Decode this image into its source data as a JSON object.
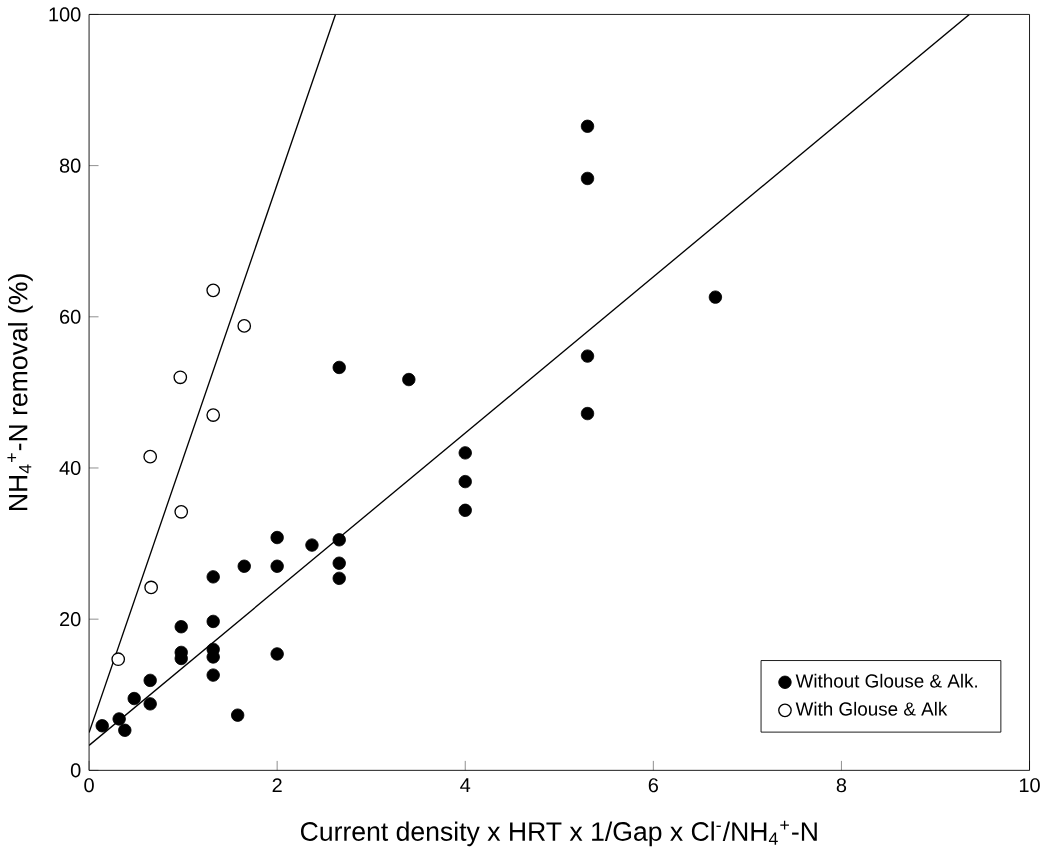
{
  "chart_data": {
    "type": "scatter",
    "xlabel": "Current density x HRT x 1/Gap x Cl$^{-}$/NH$_{4}$$^{+}$-N",
    "ylabel": "NH$_{4}$$^{+}$-N removal (%)",
    "xlim": [
      0,
      10
    ],
    "ylim": [
      0,
      100
    ],
    "xticks": [
      0,
      2,
      4,
      6,
      8,
      10
    ],
    "yticks": [
      0,
      20,
      40,
      60,
      80,
      100
    ],
    "grid": false,
    "legend": "bottom right",
    "series": [
      {
        "name": "Without Glouse & Alk.",
        "color": "#000000",
        "marker": "circle",
        "x": [
          5.3,
          5.3,
          6.66,
          5.3,
          5.3,
          2.66,
          3.4,
          4.0,
          4.0,
          4.0,
          2.0,
          2.37,
          2.66,
          2.66,
          2.66,
          1.65,
          2.0,
          1.32,
          0.98,
          1.32,
          0.98,
          0.98,
          1.32,
          1.32,
          1.32,
          2.0,
          1.58,
          0.65,
          0.65,
          0.48,
          0.32,
          0.14,
          0.38
        ],
        "values": [
          85.2,
          78.3,
          62.6,
          54.8,
          47.2,
          53.3,
          51.7,
          42,
          38.2,
          34.4,
          30.8,
          29.8,
          30.5,
          27.4,
          25.4,
          27,
          27,
          25.6,
          19,
          19.7,
          15.6,
          14.8,
          16,
          15,
          12.6,
          15.4,
          7.3,
          11.9,
          8.8,
          9.5,
          6.8,
          5.9,
          5.3
        ]
      },
      {
        "name": "With Glouse & Alk",
        "color": "#000000",
        "marker": "open circle",
        "x": [
          1.32,
          1.65,
          0.97,
          1.32,
          0.65,
          0.98,
          0.66,
          0.31
        ],
        "values": [
          63.5,
          58.8,
          52,
          47,
          41.5,
          34.2,
          24.2,
          14.7
        ]
      },
      {
        "type": "line",
        "color": "#000000",
        "marker": "none",
        "x": [
          0,
          9.36
        ],
        "values": [
          3.3,
          100
        ]
      },
      {
        "type": "line",
        "color": "#000000",
        "marker": "none",
        "x": [
          0,
          2.62
        ],
        "values": [
          5,
          100
        ]
      }
    ]
  }
}
